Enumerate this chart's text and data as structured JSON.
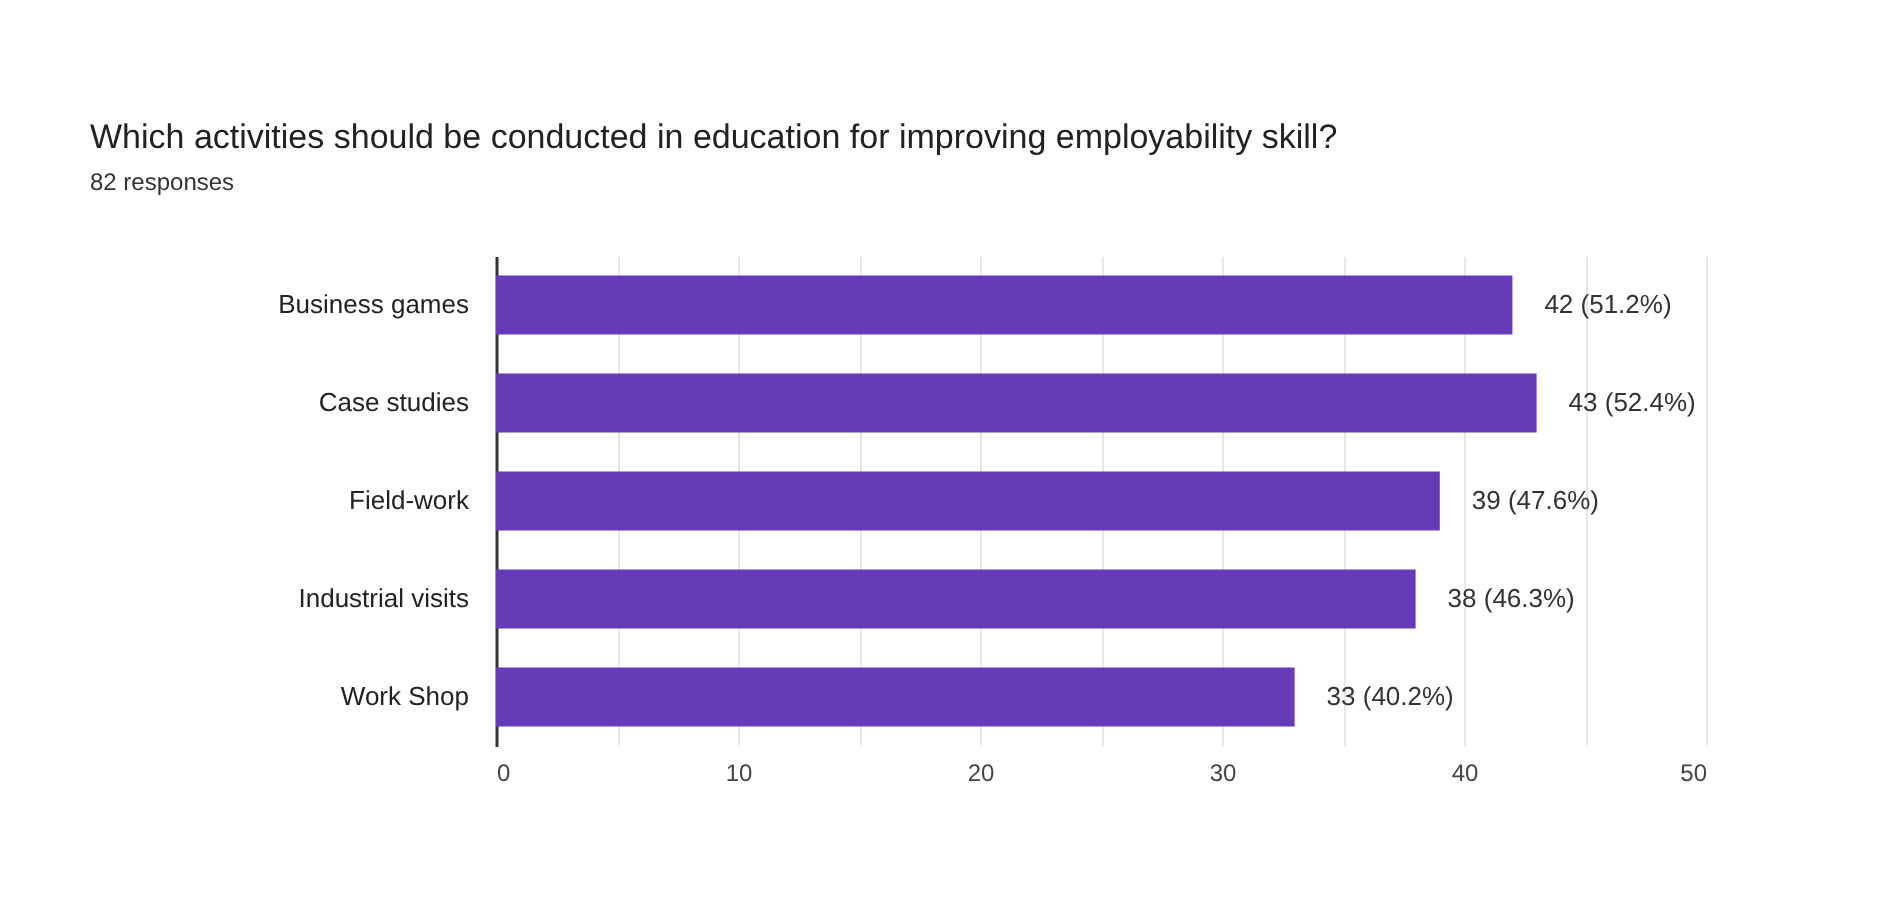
{
  "chart_data": {
    "type": "bar",
    "orientation": "horizontal",
    "title": "Which activities should be conducted in education for improving employability skill?",
    "subtitle": "82 responses",
    "categories": [
      "Business games",
      "Case studies",
      "Field-work",
      "Industrial visits",
      "Work Shop"
    ],
    "values": [
      42,
      43,
      39,
      38,
      33
    ],
    "color": "#673ab7",
    "value_labels": [
      "42 (51.2%)",
      "43 (52.4%)",
      "39 (47.6%)",
      "38 (46.3%)",
      "33 (40.2%)"
    ],
    "xlim": [
      0,
      50
    ],
    "xticks": [
      0,
      {
        "value": 5,
        "label": null
      },
      10,
      {
        "value": 15,
        "label": null
      },
      20,
      {
        "value": 25,
        "label": null
      },
      30,
      {
        "value": 35,
        "label": null
      },
      40,
      {
        "value": 45,
        "label": null
      },
      50
    ],
    "grid": "x"
  }
}
